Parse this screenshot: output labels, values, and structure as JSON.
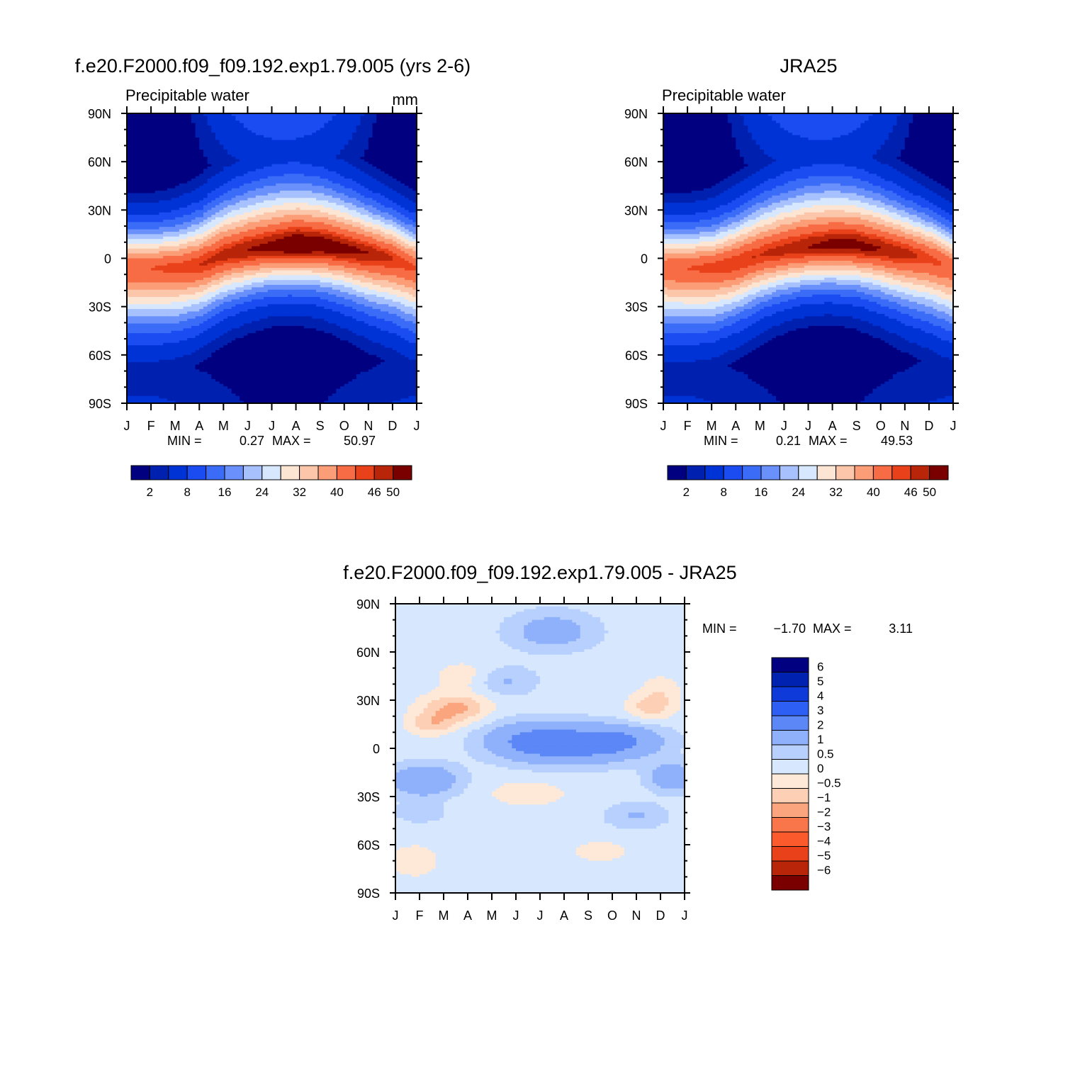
{
  "chart_data": [
    {
      "type": "heatmap",
      "title": "f.e20.F2000.f09_f09.192.exp1.79.005 (yrs 2-6)",
      "subtitle": "Precipitable water",
      "units": "mm",
      "xlabel": "",
      "ylabel": "",
      "x_ticks": [
        "J",
        "F",
        "M",
        "A",
        "M",
        "J",
        "J",
        "A",
        "S",
        "O",
        "N",
        "D",
        "J"
      ],
      "y_ticks": [
        "90N",
        "60N",
        "30N",
        "0",
        "30S",
        "60S",
        "90S"
      ],
      "ylim": [
        -90,
        90
      ],
      "stats": {
        "min_label": "MIN =",
        "min": "0.27",
        "max_label": "MAX =",
        "max": "50.97"
      },
      "equator_peak": [
        44,
        44,
        45,
        46,
        47,
        48,
        49,
        51,
        50,
        49,
        48,
        46,
        44
      ],
      "peak_lat": [
        -6,
        -6,
        -6,
        -4,
        2,
        5,
        7,
        8,
        8,
        6,
        3,
        0,
        -6
      ],
      "colorbar": {
        "labels": [
          "2",
          "8",
          "16",
          "24",
          "32",
          "40",
          "46",
          "50"
        ],
        "levels": [
          2,
          4,
          8,
          12,
          16,
          20,
          24,
          28,
          32,
          36,
          40,
          44,
          46,
          48,
          50
        ],
        "colors": [
          "#000080",
          "#0020b0",
          "#0033d6",
          "#1a4cf2",
          "#3a6cf8",
          "#6a90fb",
          "#a6c1fd",
          "#d6e7fe",
          "#fde5d3",
          "#fcc6aa",
          "#fb9e78",
          "#f86c45",
          "#e9421a",
          "#b82508",
          "#7a0000"
        ]
      }
    },
    {
      "type": "heatmap",
      "title": "JRA25",
      "subtitle": "Precipitable water",
      "x_ticks": [
        "J",
        "F",
        "M",
        "A",
        "M",
        "J",
        "J",
        "A",
        "S",
        "O",
        "N",
        "D",
        "J"
      ],
      "y_ticks": [
        "90N",
        "60N",
        "30N",
        "0",
        "30S",
        "60S",
        "90S"
      ],
      "ylim": [
        -90,
        90
      ],
      "stats": {
        "min_label": "MIN =",
        "min": "0.21",
        "max_label": "MAX =",
        "max": "49.53"
      },
      "equator_peak": [
        43,
        44,
        45,
        46,
        46,
        47,
        48,
        49,
        49,
        48,
        47,
        45,
        43
      ],
      "peak_lat": [
        -6,
        -6,
        -6,
        -3,
        2,
        5,
        7,
        8,
        8,
        6,
        3,
        0,
        -6
      ],
      "colorbar": {
        "labels": [
          "2",
          "8",
          "16",
          "24",
          "32",
          "40",
          "46",
          "50"
        ],
        "levels": [
          2,
          4,
          8,
          12,
          16,
          20,
          24,
          28,
          32,
          36,
          40,
          44,
          46,
          48,
          50
        ],
        "colors": [
          "#000080",
          "#0020b0",
          "#0033d6",
          "#1a4cf2",
          "#3a6cf8",
          "#6a90fb",
          "#a6c1fd",
          "#d6e7fe",
          "#fde5d3",
          "#fcc6aa",
          "#fb9e78",
          "#f86c45",
          "#e9421a",
          "#b82508",
          "#7a0000"
        ]
      }
    },
    {
      "type": "heatmap",
      "title": "f.e20.F2000.f09_f09.192.exp1.79.005 - JRA25",
      "x_ticks": [
        "J",
        "F",
        "M",
        "A",
        "M",
        "J",
        "J",
        "A",
        "S",
        "O",
        "N",
        "D",
        "J"
      ],
      "y_ticks": [
        "90N",
        "60N",
        "30N",
        "0",
        "30S",
        "60S",
        "90S"
      ],
      "ylim": [
        -90,
        90
      ],
      "stats": {
        "min_label": "MIN =",
        "min": "-1.70",
        "max_label": "MAX =",
        "max": "3.11"
      },
      "colorbar": {
        "labels": [
          "6",
          "5",
          "4",
          "3",
          "2",
          "1",
          "0.5",
          "0",
          "-0.5",
          "-1",
          "-2",
          "-3",
          "-4",
          "-5",
          "-6"
        ],
        "levels": [
          -6,
          -5,
          -4,
          -3,
          -2,
          -1,
          -0.5,
          0,
          0.5,
          1,
          2,
          3,
          4,
          5,
          6
        ],
        "colors": [
          "#7a0000",
          "#b82508",
          "#e9421a",
          "#fb5a2c",
          "#f8764a",
          "#fba57f",
          "#fdd0b5",
          "#fee8d8",
          "#d6e7fe",
          "#b7d0fd",
          "#8fb1fb",
          "#5c87f7",
          "#2e5ff4",
          "#0d3ad8",
          "#0022b0",
          "#000080"
        ]
      }
    }
  ]
}
